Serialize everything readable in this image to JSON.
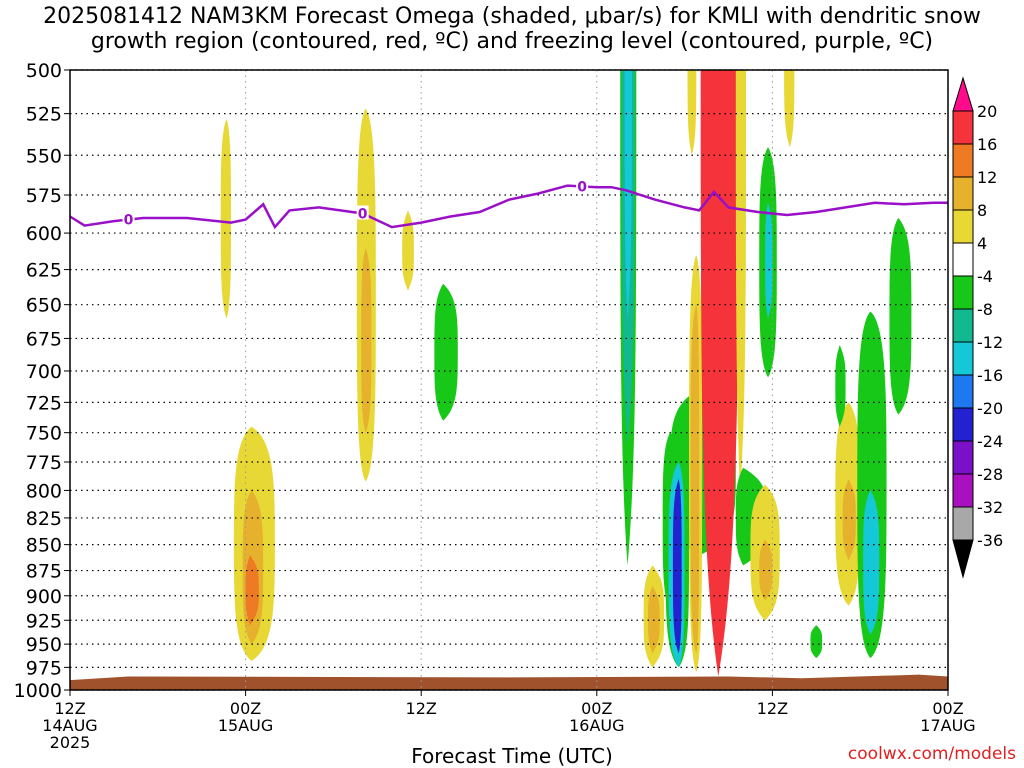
{
  "title": {
    "line1": "2025081412 NAM3KM Forecast Omega (shaded, μbar/s) for KMLI with dendritic snow",
    "line2": "growth region (contoured, red, ºC) and freezing level (contoured, purple, ºC)"
  },
  "credit": "coolwx.com/models",
  "chart_data": {
    "type": "heatmap",
    "title": "2025081412 NAM3KM Forecast Omega (shaded, μbar/s) for KMLI with dendritic snow growth region (contoured, red, ºC) and freezing level (contoured, purple, ºC)",
    "xlabel": "Forecast Time (UTC)",
    "ylabel": "",
    "x_range_hours": [
      0,
      60
    ],
    "y_range_mb": [
      1000,
      500
    ],
    "y_ticks": [
      "500",
      "525",
      "550",
      "575",
      "600",
      "625",
      "650",
      "675",
      "700",
      "725",
      "750",
      "775",
      "800",
      "825",
      "850",
      "875",
      "900",
      "925",
      "950",
      "975",
      "1000"
    ],
    "x_ticks": [
      {
        "hour": 0,
        "lines": [
          "12Z",
          "14AUG",
          "2025"
        ]
      },
      {
        "hour": 12,
        "lines": [
          "00Z",
          "15AUG"
        ]
      },
      {
        "hour": 24,
        "lines": [
          "12Z"
        ]
      },
      {
        "hour": 36,
        "lines": [
          "00Z",
          "16AUG"
        ]
      },
      {
        "hour": 48,
        "lines": [
          "12Z"
        ]
      },
      {
        "hour": 60,
        "lines": [
          "00Z",
          "17AUG"
        ]
      }
    ],
    "colorbar_labels": [
      "20",
      "16",
      "12",
      "8",
      "4",
      "-4",
      "-8",
      "-12",
      "-16",
      "-20",
      "-24",
      "-28",
      "-32",
      "-36"
    ],
    "colorbar_colors": [
      "#ff0a8a",
      "#f4343a",
      "#ee7a24",
      "#e6b22e",
      "#e8d836",
      "#ffffff",
      "#18c818",
      "#12b890",
      "#14c8d8",
      "#1e78f0",
      "#2222d0",
      "#7a10c8",
      "#a810c0",
      "#a8a8a8",
      "#000000"
    ],
    "freezing_level": {
      "color": "#9a10c8",
      "label": "0",
      "points": [
        [
          0,
          589
        ],
        [
          1,
          595
        ],
        [
          3,
          592
        ],
        [
          5,
          590
        ],
        [
          8,
          590
        ],
        [
          11,
          593
        ],
        [
          12,
          591
        ],
        [
          13.2,
          581
        ],
        [
          14,
          596
        ],
        [
          15,
          585
        ],
        [
          17,
          583
        ],
        [
          20,
          587
        ],
        [
          22,
          596
        ],
        [
          24,
          593
        ],
        [
          26,
          589
        ],
        [
          28,
          586
        ],
        [
          30,
          578
        ],
        [
          32,
          574
        ],
        [
          34,
          569
        ],
        [
          36,
          570
        ],
        [
          37,
          570
        ],
        [
          38,
          572
        ],
        [
          40,
          578
        ],
        [
          42,
          583
        ],
        [
          43,
          585
        ],
        [
          44,
          573
        ],
        [
          45,
          583
        ],
        [
          47,
          586
        ],
        [
          49,
          588
        ],
        [
          51,
          586
        ],
        [
          53,
          583
        ],
        [
          55,
          580
        ],
        [
          57,
          581
        ],
        [
          59,
          580
        ],
        [
          60,
          580
        ]
      ],
      "label_hours": [
        4,
        20,
        35
      ]
    },
    "omega_regions": [
      {
        "value": 6,
        "x": [
          10.3,
          11.0,
          10.7
        ],
        "p": [
          528,
          660
        ]
      },
      {
        "value": 6,
        "x": [
          19.6,
          20.9,
          20.2
        ],
        "p": [
          522,
          792
        ]
      },
      {
        "value": 10,
        "x": [
          19.9,
          20.6,
          20.2
        ],
        "p": [
          610,
          750
        ]
      },
      {
        "value": 6,
        "x": [
          22.7,
          23.5,
          23.1
        ],
        "p": [
          585,
          640
        ]
      },
      {
        "value": 6,
        "x": [
          11.2,
          14.0,
          12.4
        ],
        "p": [
          745,
          968
        ]
      },
      {
        "value": 10,
        "x": [
          11.8,
          13.2,
          12.4
        ],
        "p": [
          800,
          950
        ]
      },
      {
        "value": 14,
        "x": [
          12.0,
          12.9,
          12.3
        ],
        "p": [
          860,
          930
        ]
      },
      {
        "value": -6,
        "x": [
          24.9,
          26.5,
          25.5
        ],
        "p": [
          635,
          740
        ]
      },
      {
        "value": -6,
        "x": [
          37.6,
          38.7,
          38.1
        ],
        "p": [
          500,
          870
        ]
      },
      {
        "value": -10,
        "x": [
          37.7,
          38.6,
          38.1
        ],
        "p": [
          500,
          760
        ]
      },
      {
        "value": -14,
        "x": [
          37.9,
          38.4,
          38.1
        ],
        "p": [
          500,
          660
        ]
      },
      {
        "value": -6,
        "x": [
          41.0,
          45.5,
          43.0
        ],
        "p": [
          715,
          860
        ]
      },
      {
        "value": -6,
        "x": [
          40.5,
          42.0,
          41.0
        ],
        "p": [
          750,
          915
        ]
      },
      {
        "value": 6,
        "x": [
          39.2,
          40.6,
          39.8
        ],
        "p": [
          870,
          975
        ]
      },
      {
        "value": 12,
        "x": [
          39.5,
          40.3,
          39.8
        ],
        "p": [
          890,
          960
        ]
      },
      {
        "value": -6,
        "x": [
          40.7,
          42.3,
          41.6
        ],
        "p": [
          765,
          975
        ]
      },
      {
        "value": -14,
        "x": [
          40.9,
          42.0,
          41.6
        ],
        "p": [
          775,
          975
        ]
      },
      {
        "value": -22,
        "x": [
          41.2,
          41.8,
          41.6
        ],
        "p": [
          790,
          960
        ]
      },
      {
        "value": 6,
        "x": [
          42.2,
          42.8,
          42.5
        ],
        "p": [
          500,
          550
        ]
      },
      {
        "value": 6,
        "x": [
          42.3,
          43.2,
          42.8
        ],
        "p": [
          615,
          980
        ]
      },
      {
        "value": 10,
        "x": [
          42.4,
          43.0,
          42.8
        ],
        "p": [
          650,
          960
        ]
      },
      {
        "value": 20,
        "x": [
          43.1,
          45.7,
          44.3
        ],
        "p": [
          500,
          985
        ]
      },
      {
        "value": 6,
        "x": [
          45.5,
          46.2,
          45.8
        ],
        "p": [
          500,
          800
        ]
      },
      {
        "value": -6,
        "x": [
          45.5,
          47.6,
          46.0
        ],
        "p": [
          780,
          870
        ]
      },
      {
        "value": -6,
        "x": [
          47.1,
          48.3,
          47.7
        ],
        "p": [
          545,
          705
        ]
      },
      {
        "value": -14,
        "x": [
          47.5,
          48.0,
          47.7
        ],
        "p": [
          580,
          660
        ]
      },
      {
        "value": 6,
        "x": [
          46.5,
          48.5,
          47.5
        ],
        "p": [
          795,
          925
        ]
      },
      {
        "value": 10,
        "x": [
          47.1,
          48.0,
          47.5
        ],
        "p": [
          845,
          905
        ]
      },
      {
        "value": 6,
        "x": [
          48.8,
          49.5,
          49.2
        ],
        "p": [
          500,
          545
        ]
      },
      {
        "value": -6,
        "x": [
          50.6,
          51.4,
          51.0
        ],
        "p": [
          930,
          965
        ]
      },
      {
        "value": 6,
        "x": [
          52.3,
          54.0,
          53.2
        ],
        "p": [
          725,
          910
        ]
      },
      {
        "value": 10,
        "x": [
          52.8,
          53.7,
          53.2
        ],
        "p": [
          790,
          865
        ]
      },
      {
        "value": -6,
        "x": [
          53.8,
          55.8,
          54.7
        ],
        "p": [
          655,
          965
        ]
      },
      {
        "value": -14,
        "x": [
          54.2,
          55.3,
          54.7
        ],
        "p": [
          800,
          940
        ]
      },
      {
        "value": -6,
        "x": [
          52.3,
          53.0,
          52.6
        ],
        "p": [
          680,
          745
        ]
      },
      {
        "value": -6,
        "x": [
          56.0,
          57.5,
          56.6
        ],
        "p": [
          590,
          735
        ]
      }
    ]
  }
}
